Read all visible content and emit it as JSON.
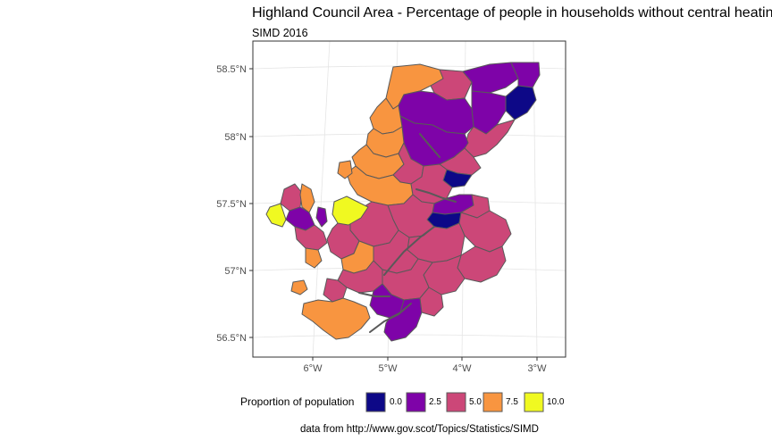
{
  "title": "Highland Council Area - Percentage of people in households without central heating",
  "subtitle": "SIMD 2016",
  "caption": "data from http://www.gov.scot/Topics/Statistics/SIMD",
  "map": {
    "lat_ticks": [
      "58.5°N",
      "58°N",
      "57.5°N",
      "57°N",
      "56.5°N"
    ],
    "lon_ticks": [
      "6°W",
      "5°W",
      "4°W",
      "3°W"
    ],
    "grid": true
  },
  "legend": {
    "title": "Proportion of population",
    "position": "bottom",
    "items": [
      {
        "label": "0.0",
        "color": "#0d0887"
      },
      {
        "label": "2.5",
        "color": "#7e03a8"
      },
      {
        "label": "5.0",
        "color": "#cc4778"
      },
      {
        "label": "7.5",
        "color": "#f89540"
      },
      {
        "label": "10.0",
        "color": "#f0f921"
      }
    ]
  },
  "colors": {
    "border": "#595959",
    "grid": "#e5e5e5",
    "panel_border": "#333333"
  }
}
